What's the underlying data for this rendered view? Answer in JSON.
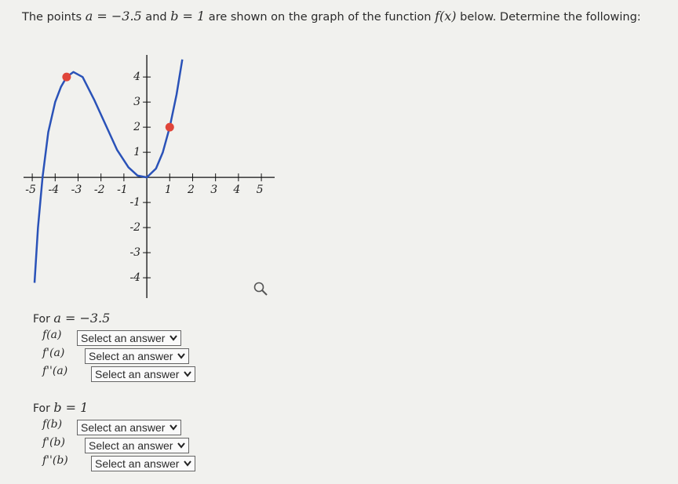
{
  "prompt": [
    "The points ",
    "a = −3.5",
    " and ",
    "b = 1",
    " are shown on the graph of the function ",
    "f(x)",
    " below. Determine the following:"
  ],
  "graph": {
    "xlim": [
      -5.38,
      5.58
    ],
    "ylim": [
      -4.81,
      4.88
    ],
    "xticks": [
      -5,
      -4,
      -3,
      -2,
      -1,
      1,
      2,
      3,
      4,
      5
    ],
    "yticks": [
      -4,
      -3,
      -2,
      -1,
      1,
      2,
      3,
      4
    ],
    "curve": {
      "color": "#2a52b8",
      "x": [
        -4.9,
        -4.75,
        -4.55,
        -4.3,
        -4.0,
        -3.75,
        -3.5,
        -3.2,
        -2.8,
        -2.3,
        -1.8,
        -1.3,
        -0.8,
        -0.4,
        0,
        0.4,
        0.7,
        1,
        1.3,
        1.55
      ],
      "y": [
        -4.2,
        -2,
        0,
        1.8,
        3,
        3.6,
        4,
        4.2,
        4,
        3.1,
        2.1,
        1.1,
        0.4,
        0.07,
        0,
        0.35,
        1,
        2,
        3.3,
        4.7
      ]
    },
    "points": [
      {
        "x": -3.5,
        "y": 4,
        "color": "#e0453a"
      },
      {
        "x": 1,
        "y": 2,
        "color": "#e0453a"
      }
    ]
  },
  "sections": [
    {
      "heading": "For ",
      "var": "a = −3.5",
      "rows": [
        {
          "label": "f(a)",
          "select": "Select an answer"
        },
        {
          "label": "f'(a)",
          "select": "Select an answer"
        },
        {
          "label": "f''(a)",
          "select": "Select an answer"
        }
      ]
    },
    {
      "heading": "For ",
      "var": "b = 1",
      "rows": [
        {
          "label": "f(b)",
          "select": "Select an answer"
        },
        {
          "label": "f'(b)",
          "select": "Select an answer"
        },
        {
          "label": "f''(b)",
          "select": "Select an answer"
        }
      ]
    }
  ]
}
